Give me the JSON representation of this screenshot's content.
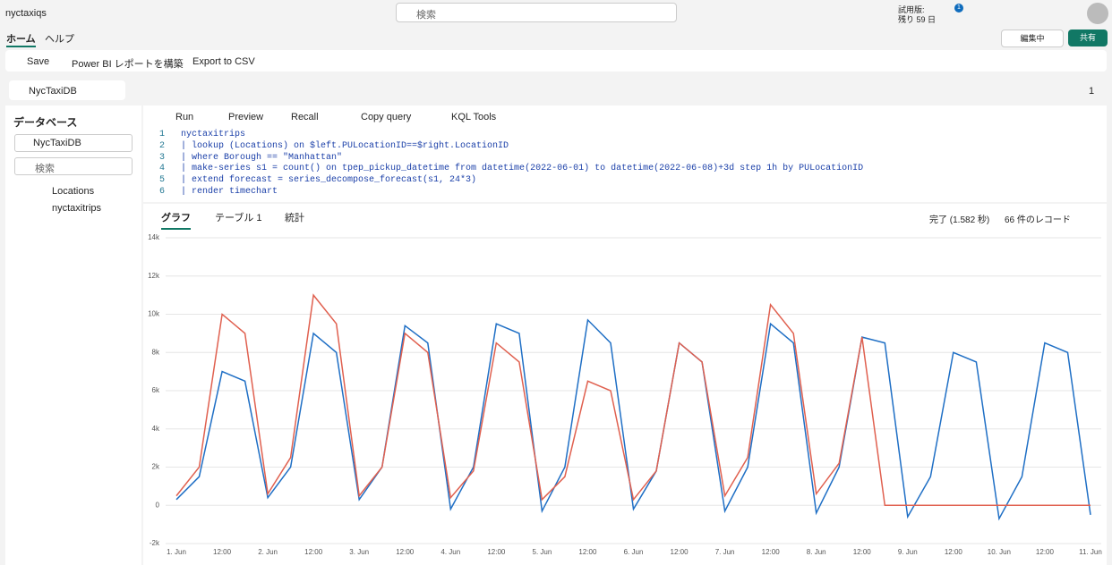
{
  "topbar": {
    "workspace": "nyctaxiqs",
    "search": "検索",
    "trial_label": "試用版:",
    "trial_days": "残り 59 日",
    "notifications": "1"
  },
  "menu": {
    "tabs": [
      "ホーム",
      "ヘルプ"
    ],
    "edit_mode": "編集中",
    "share": "共有"
  },
  "toolbar": {
    "save": "Save",
    "powerbi": "Power BI レポートを構築",
    "export": "Export to CSV"
  },
  "doc_tab": {
    "name": "NycTaxiDB",
    "count": "1"
  },
  "sidebar": {
    "title": "データベース",
    "database": "NycTaxiDB",
    "search": "検索",
    "tables": [
      "Locations",
      "nyctaxitrips"
    ]
  },
  "query_toolbar": [
    "Run",
    "Preview",
    "Recall",
    "Copy query",
    "KQL Tools"
  ],
  "editor": {
    "line_numbers": [
      "1",
      "2",
      "3",
      "4",
      "5",
      "6"
    ],
    "lines": [
      "nyctaxitrips",
      "| lookup (Locations) on $left.PULocationID==$right.LocationID",
      "| where Borough == \"Manhattan\"",
      "| make-series s1 = count() on tpep_pickup_datetime from datetime(2022-06-01) to datetime(2022-06-08)+3d step 1h by PULocationID",
      "| extend forecast = series_decompose_forecast(s1, 24*3)",
      "| render timechart"
    ]
  },
  "results": {
    "tabs": [
      "グラフ",
      "テーブル 1",
      "統計"
    ],
    "status": "完了 (1.582 秒)",
    "records": "66 件のレコード"
  },
  "chart_data": {
    "type": "line",
    "categories": [
      "1. Jun",
      null,
      "12:00",
      null,
      "2. Jun",
      null,
      "12:00",
      null,
      "3. Jun",
      null,
      "12:00",
      null,
      "4. Jun",
      null,
      "12:00",
      null,
      "5. Jun",
      null,
      "12:00",
      null,
      "6. Jun",
      null,
      "12:00",
      null,
      "7. Jun",
      null,
      "12:00",
      null,
      "8. Jun",
      null,
      "12:00",
      null,
      "9. Jun",
      null,
      "12:00",
      null,
      "10. Jun",
      null,
      "12:00",
      null,
      "11. Jun"
    ],
    "series": [
      {
        "color": "#1f6fc5",
        "values": [
          300,
          1500,
          7000,
          6500,
          400,
          2000,
          9000,
          8000,
          300,
          2000,
          9400,
          8500,
          -200,
          2000,
          9500,
          9000,
          -300,
          2000,
          9700,
          8500,
          -200,
          1800,
          8500,
          7500,
          -300,
          2000,
          9500,
          8500,
          -400,
          2000,
          8800,
          8500,
          -600,
          1500,
          8000,
          7500,
          -700,
          1500,
          8500,
          8000,
          -500
        ]
      },
      {
        "color": "#e0604f",
        "values": [
          500,
          2000,
          10000,
          9000,
          600,
          2500,
          11000,
          9500,
          500,
          2000,
          9000,
          8000,
          400,
          1800,
          8500,
          7500,
          300,
          1500,
          6500,
          6000,
          300,
          1800,
          8500,
          7500,
          500,
          2500,
          10500,
          9000,
          600,
          2200,
          8800,
          0,
          0,
          0,
          0,
          0,
          0,
          0,
          0,
          0,
          0
        ]
      }
    ],
    "ylim": [
      -2000,
      14000
    ],
    "yticks": [
      {
        "value": -2000,
        "label": "-2k"
      },
      0,
      {
        "value": 2000,
        "label": "2k"
      },
      {
        "value": 4000,
        "label": "4k"
      },
      {
        "value": 6000,
        "label": "6k"
      },
      {
        "value": 8000,
        "label": "8k"
      },
      {
        "value": 10000,
        "label": "10k"
      },
      {
        "value": 12000,
        "label": "12k"
      },
      {
        "value": 14000,
        "label": "14k"
      }
    ],
    "grid": true
  }
}
